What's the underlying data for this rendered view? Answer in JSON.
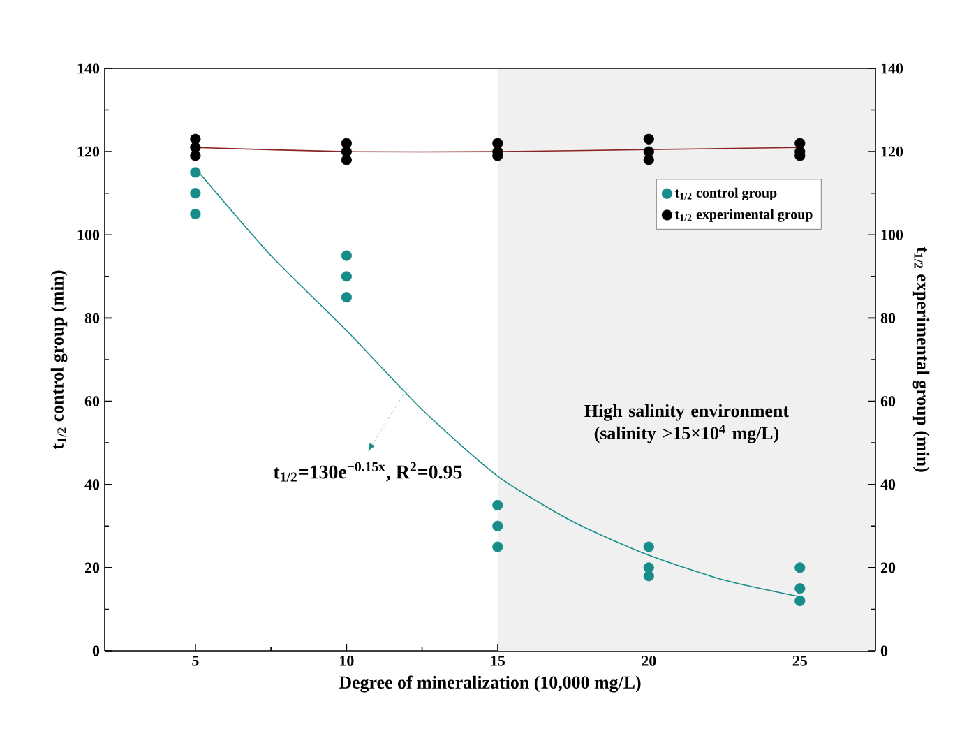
{
  "chart_data": {
    "type": "scatter",
    "xlabel": "Degree of mineralization (10,000 mg/L)",
    "ylabel": "t$_{1/2}$ control group (min)",
    "y2label": "t$_{1/2}$ experimental group (min)",
    "xlim": [
      2,
      27.5
    ],
    "xticks": [
      5,
      10,
      15,
      20,
      25
    ],
    "ylim": [
      0,
      140
    ],
    "yticks": [
      0,
      20,
      40,
      60,
      80,
      100,
      120,
      140
    ],
    "y2lim": [
      0,
      140
    ],
    "y2ticks": [
      0,
      20,
      40,
      60,
      80,
      100,
      120,
      140
    ],
    "grid": false,
    "legend": "top right",
    "series": [
      {
        "name": "t$_{1/2}$ control group",
        "marker": "circle",
        "color": "#178c88",
        "x": [
          5,
          5,
          5,
          10,
          10,
          10,
          15,
          15,
          15,
          20,
          20,
          20,
          25,
          25,
          25
        ],
        "values": [
          115,
          110,
          105,
          95,
          90,
          85,
          35,
          30,
          25,
          25,
          20,
          18,
          20,
          15,
          12
        ]
      },
      {
        "name": "t$_{1/2}$ experimental group",
        "marker": "circle",
        "color": "#000000",
        "x": [
          5,
          5,
          5,
          10,
          10,
          10,
          15,
          15,
          15,
          20,
          20,
          20,
          25,
          25,
          25
        ],
        "values": [
          123,
          121,
          119,
          122,
          120,
          118,
          122,
          120,
          119,
          123,
          120,
          118,
          122,
          120,
          119
        ]
      },
      {
        "type": "line",
        "marker": "none",
        "color": "#178c88",
        "x": [
          5,
          7.5,
          10,
          12.5,
          15,
          17.5,
          20,
          22.5,
          25
        ],
        "values": [
          116,
          95,
          77,
          58,
          42,
          31,
          23,
          17,
          13
        ]
      },
      {
        "type": "line",
        "marker": "none",
        "color": "#8b2323",
        "x": [
          5,
          10,
          15,
          20,
          25
        ],
        "values": [
          121,
          120,
          120,
          120.5,
          121
        ]
      }
    ],
    "bands": [
      {
        "axis": "x",
        "from": 15,
        "to": 27.5,
        "label": "High salinity environment (salinity >15×10$^{4}$ mg/L)",
        "color": "#f0f0f0"
      }
    ],
    "annotations": [
      {
        "text": "t$_{1/2}$=130e$^{−0.15x}$, R$^{2}$=0.95",
        "x": 12,
        "y": 63
      }
    ]
  }
}
